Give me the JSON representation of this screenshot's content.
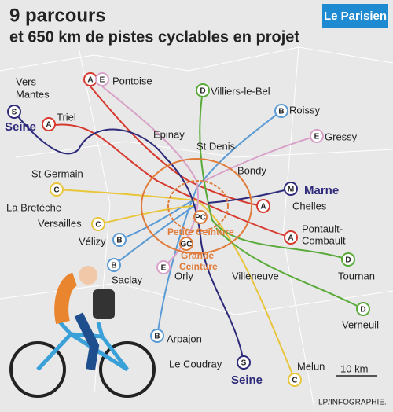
{
  "header": {
    "title": "9 parcours",
    "subtitle": "et 650 km de pistes cyclables en projet",
    "logo": "Le Parisien"
  },
  "routes": [
    {
      "code": "A"
    },
    {
      "code": "B"
    },
    {
      "code": "C"
    },
    {
      "code": "D"
    },
    {
      "code": "E"
    },
    {
      "code": "S"
    },
    {
      "code": "M"
    },
    {
      "code": "PC",
      "name": "Petite Ceinture"
    },
    {
      "code": "GC",
      "name": [
        "Grande",
        "Ceinture"
      ]
    }
  ],
  "places": [
    "Pontoise",
    "Villiers-le-Bel",
    "Roissy",
    "Vers",
    "Mantes",
    "Triel",
    "Seine",
    "Gressy",
    "Epinay",
    "St Denis",
    "Bondy",
    "St Germain",
    "Marne",
    "Chelles",
    "La Bretèche",
    "Versailles",
    "Pontault-",
    "Combault",
    "Vélizy",
    "Saclay",
    "Orly",
    "Villeneuve",
    "Tournan",
    "Verneuil",
    "Arpajon",
    "Le Coudray",
    "Seine",
    "Melun"
  ],
  "scale": "10 km",
  "credit": "LP/INFOGRAPHIE."
}
